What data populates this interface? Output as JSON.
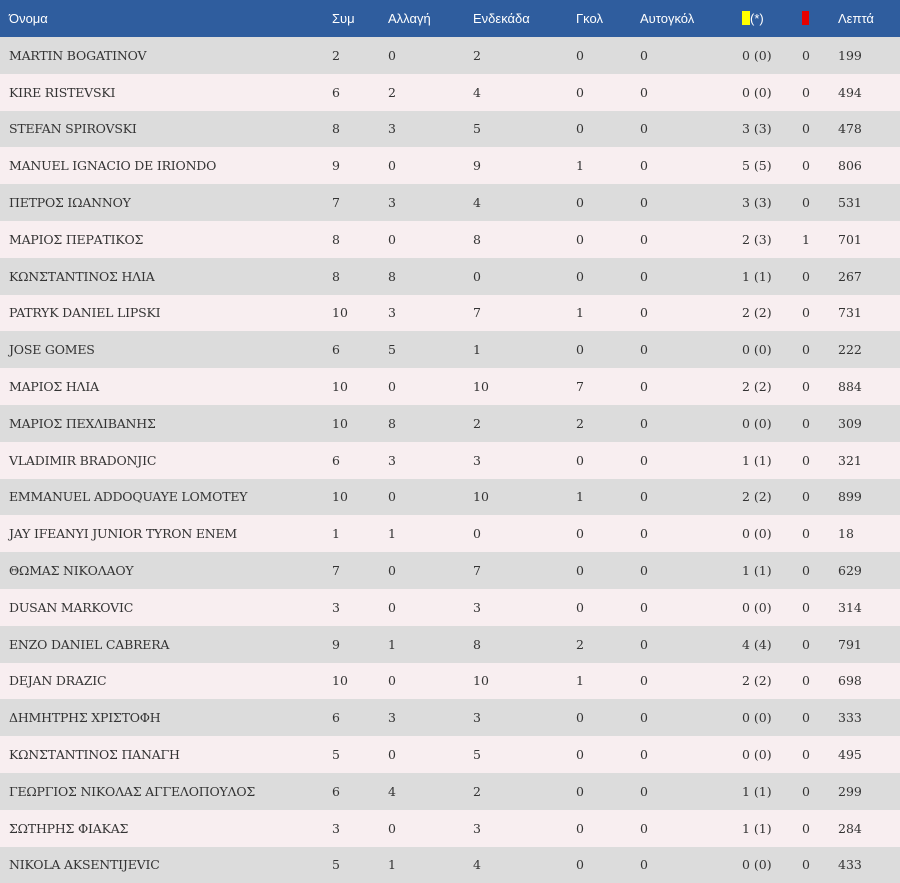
{
  "colors": {
    "header_bg": "#2f5d9e",
    "row_odd": "#dcdcdc",
    "row_even": "#f8eef0",
    "yellow_card": "#ffff00",
    "red_card": "#e60000"
  },
  "header": {
    "name": "Όνομα",
    "apps": "Συμ",
    "sub": "Αλλαγή",
    "starting": "Ενδεκάδα",
    "goals": "Γκολ",
    "own_goals": "Αυτογκόλ",
    "yellow_suffix": "(*)",
    "minutes": "Λεπτά"
  },
  "players": [
    {
      "name": "MARTIN BOGATINOV",
      "apps": "2",
      "sub": "0",
      "starting": "2",
      "goals": "0",
      "own_goals": "0",
      "yellow": "0 (0)",
      "red": "0",
      "minutes": "199"
    },
    {
      "name": "KIRE RISTEVSKI",
      "apps": "6",
      "sub": "2",
      "starting": "4",
      "goals": "0",
      "own_goals": "0",
      "yellow": "0 (0)",
      "red": "0",
      "minutes": "494"
    },
    {
      "name": "STEFAN SPIROVSKI",
      "apps": "8",
      "sub": "3",
      "starting": "5",
      "goals": "0",
      "own_goals": "0",
      "yellow": "3 (3)",
      "red": "0",
      "minutes": "478"
    },
    {
      "name": "MANUEL IGNACIO DE IRIONDO",
      "apps": "9",
      "sub": "0",
      "starting": "9",
      "goals": "1",
      "own_goals": "0",
      "yellow": "5 (5)",
      "red": "0",
      "minutes": "806"
    },
    {
      "name": "ΠΕΤΡΟΣ ΙΩΑΝΝΟΥ",
      "apps": "7",
      "sub": "3",
      "starting": "4",
      "goals": "0",
      "own_goals": "0",
      "yellow": "3 (3)",
      "red": "0",
      "minutes": "531"
    },
    {
      "name": "ΜΑΡΙΟΣ ΠΕΡΑΤΙΚΟΣ",
      "apps": "8",
      "sub": "0",
      "starting": "8",
      "goals": "0",
      "own_goals": "0",
      "yellow": "2 (3)",
      "red": "1",
      "minutes": "701"
    },
    {
      "name": "ΚΩΝΣΤΑΝΤΙΝΟΣ ΗΛΙΑ",
      "apps": "8",
      "sub": "8",
      "starting": "0",
      "goals": "0",
      "own_goals": "0",
      "yellow": "1 (1)",
      "red": "0",
      "minutes": "267"
    },
    {
      "name": "PATRYK DANIEL LIPSKI",
      "apps": "10",
      "sub": "3",
      "starting": "7",
      "goals": "1",
      "own_goals": "0",
      "yellow": "2 (2)",
      "red": "0",
      "minutes": "731"
    },
    {
      "name": "JOSE GOMES",
      "apps": "6",
      "sub": "5",
      "starting": "1",
      "goals": "0",
      "own_goals": "0",
      "yellow": "0 (0)",
      "red": "0",
      "minutes": "222"
    },
    {
      "name": "ΜΑΡΙΟΣ ΗΛΙΑ",
      "apps": "10",
      "sub": "0",
      "starting": "10",
      "goals": "7",
      "own_goals": "0",
      "yellow": "2 (2)",
      "red": "0",
      "minutes": "884"
    },
    {
      "name": "ΜΑΡΙΟΣ ΠΕΧΛΙΒΑΝΗΣ",
      "apps": "10",
      "sub": "8",
      "starting": "2",
      "goals": "2",
      "own_goals": "0",
      "yellow": "0 (0)",
      "red": "0",
      "minutes": "309"
    },
    {
      "name": "VLADIMIR BRADONJIC",
      "apps": "6",
      "sub": "3",
      "starting": "3",
      "goals": "0",
      "own_goals": "0",
      "yellow": "1 (1)",
      "red": "0",
      "minutes": "321"
    },
    {
      "name": "EMMANUEL ADDOQUAYE LOMOTEY",
      "apps": "10",
      "sub": "0",
      "starting": "10",
      "goals": "1",
      "own_goals": "0",
      "yellow": "2 (2)",
      "red": "0",
      "minutes": "899"
    },
    {
      "name": "JAY IFEANYI JUNIOR TYRON ENEM",
      "apps": "1",
      "sub": "1",
      "starting": "0",
      "goals": "0",
      "own_goals": "0",
      "yellow": "0 (0)",
      "red": "0",
      "minutes": "18"
    },
    {
      "name": "ΘΩΜΑΣ ΝΙΚΟΛΑΟΥ",
      "apps": "7",
      "sub": "0",
      "starting": "7",
      "goals": "0",
      "own_goals": "0",
      "yellow": "1 (1)",
      "red": "0",
      "minutes": "629"
    },
    {
      "name": "DUSAN MARKOVIC",
      "apps": "3",
      "sub": "0",
      "starting": "3",
      "goals": "0",
      "own_goals": "0",
      "yellow": "0 (0)",
      "red": "0",
      "minutes": "314"
    },
    {
      "name": "ENZO DANIEL CABRERA",
      "apps": "9",
      "sub": "1",
      "starting": "8",
      "goals": "2",
      "own_goals": "0",
      "yellow": "4 (4)",
      "red": "0",
      "minutes": "791"
    },
    {
      "name": "DEJAN DRAZIC",
      "apps": "10",
      "sub": "0",
      "starting": "10",
      "goals": "1",
      "own_goals": "0",
      "yellow": "2 (2)",
      "red": "0",
      "minutes": "698"
    },
    {
      "name": "ΔΗΜΗΤΡΗΣ ΧΡΙΣΤΟΦΗ",
      "apps": "6",
      "sub": "3",
      "starting": "3",
      "goals": "0",
      "own_goals": "0",
      "yellow": "0 (0)",
      "red": "0",
      "minutes": "333"
    },
    {
      "name": "ΚΩΝΣΤΑΝΤΙΝΟΣ ΠΑΝΑΓΗ",
      "apps": "5",
      "sub": "0",
      "starting": "5",
      "goals": "0",
      "own_goals": "0",
      "yellow": "0 (0)",
      "red": "0",
      "minutes": "495"
    },
    {
      "name": "ΓΕΩΡΓΙΟΣ ΝΙΚΟΛΑΣ ΑΓΓΕΛΟΠΟΥΛΟΣ",
      "apps": "6",
      "sub": "4",
      "starting": "2",
      "goals": "0",
      "own_goals": "0",
      "yellow": "1 (1)",
      "red": "0",
      "minutes": "299"
    },
    {
      "name": "ΣΩΤΗΡΗΣ ΦΙΑΚΑΣ",
      "apps": "3",
      "sub": "0",
      "starting": "3",
      "goals": "0",
      "own_goals": "0",
      "yellow": "1 (1)",
      "red": "0",
      "minutes": "284"
    },
    {
      "name": "NIKOLA AKSENTIJEVIC",
      "apps": "5",
      "sub": "1",
      "starting": "4",
      "goals": "0",
      "own_goals": "0",
      "yellow": "0 (0)",
      "red": "0",
      "minutes": "433"
    }
  ]
}
